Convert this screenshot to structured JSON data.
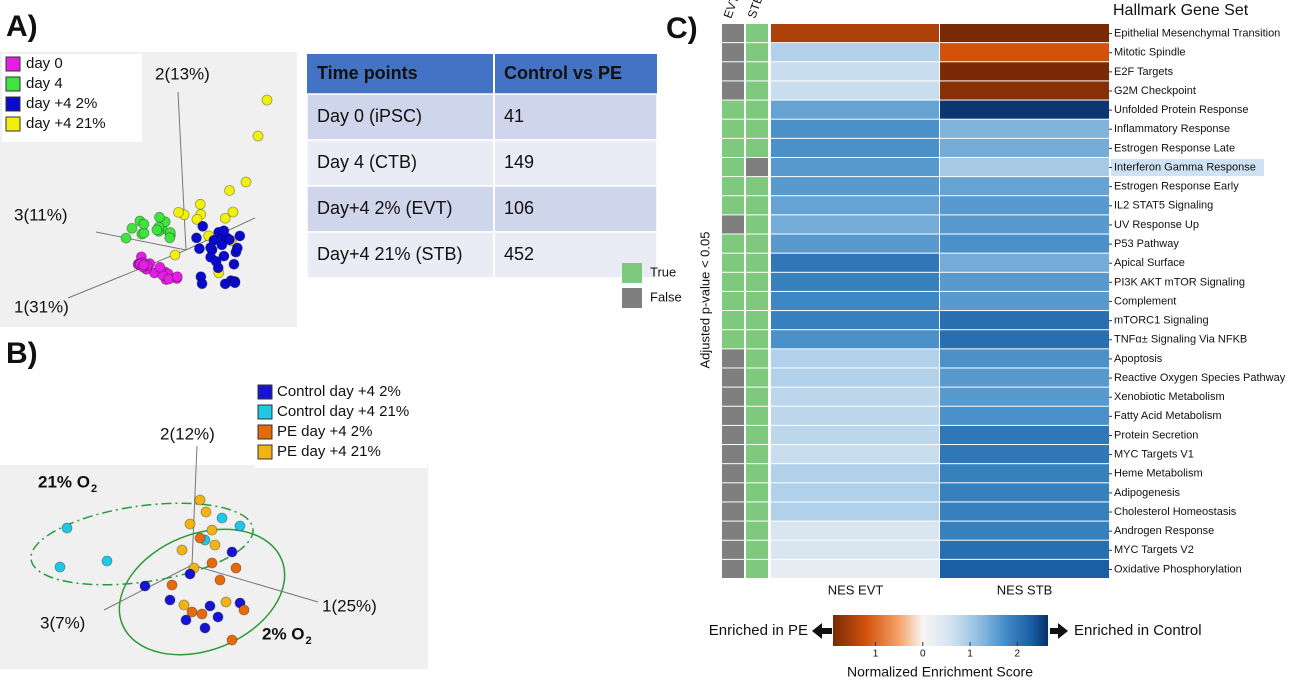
{
  "panel_a": {
    "label": "A)",
    "legend": [
      {
        "label": "day 0",
        "color": "#e41ee4"
      },
      {
        "label": "day 4",
        "color": "#3fe43f"
      },
      {
        "label": "day +4 2%",
        "color": "#0a0acf"
      },
      {
        "label": "day +4 21%",
        "color": "#f0f00a"
      }
    ],
    "axes": [
      "2(13%)",
      "3(11%)",
      "1(31%)"
    ]
  },
  "table": {
    "header": [
      "Time points",
      "Control vs PE"
    ],
    "rows": [
      [
        "Day 0 (iPSC)",
        41
      ],
      [
        "Day 4 (CTB)",
        149
      ],
      [
        "Day+4 2% (EVT)",
        106
      ],
      [
        "Day+4 21% (STB)",
        452
      ]
    ]
  },
  "panel_b": {
    "label": "B)",
    "legend": [
      {
        "label": "Control day +4 2%",
        "color": "#1414d2"
      },
      {
        "label": "Control day +4 21%",
        "color": "#1ec8e6"
      },
      {
        "label": "PE day +4 2%",
        "color": "#e66a0a"
      },
      {
        "label": "PE day +4 21%",
        "color": "#f0b414"
      }
    ],
    "axes": [
      "2(12%)",
      "3(7%)",
      "1(25%)"
    ],
    "regions": [
      {
        "text": "21% O",
        "subscript": "2"
      },
      {
        "text": "2% O",
        "subscript": "2"
      }
    ]
  },
  "panel_c": {
    "label": "C)",
    "column_headers": [
      "EVT",
      "STB"
    ],
    "gene_set_title": "Hallmark Gene Set",
    "significance_label": "Adjusted p-value < 0.05",
    "significance_legend": [
      {
        "label": "True",
        "color": "#7ec97e"
      },
      {
        "label": "False",
        "color": "#7f7f7f"
      }
    ],
    "x_labels": [
      "NES EVT",
      "NES STB"
    ],
    "rows": [
      {
        "name": "Epithelial Mesenchymal Transition",
        "color": "#e0501a",
        "evt": -1.5,
        "stb": -2.0,
        "evt_significant": false,
        "stb_significant": true
      },
      {
        "name": "Mitotic Spindle",
        "color": "#e0501a",
        "evt": 0.9,
        "stb": -1.2,
        "evt_significant": false,
        "stb_significant": true
      },
      {
        "name": "E2F Targets",
        "color": "#e0501a",
        "evt": 0.7,
        "stb": -1.9,
        "evt_significant": false,
        "stb_significant": true
      },
      {
        "name": "G2M Checkpoint",
        "color": "#e0501a",
        "evt": 0.7,
        "stb": -1.8,
        "evt_significant": false,
        "stb_significant": true
      },
      {
        "name": "Unfolded Protein Response",
        "color": "#111111",
        "evt": 1.5,
        "stb": 2.6,
        "evt_significant": true,
        "stb_significant": true
      },
      {
        "name": "Inflammatory Response",
        "color": "#111111",
        "evt": 1.7,
        "stb": 1.3,
        "evt_significant": true,
        "stb_significant": true
      },
      {
        "name": "Estrogen Response Late",
        "color": "#111111",
        "evt": 1.7,
        "stb": 1.4,
        "evt_significant": true,
        "stb_significant": true
      },
      {
        "name": "Interferon Gamma Response",
        "color": "#111111",
        "highlight": "#cfe2f3",
        "evt": 1.6,
        "stb": 1.0,
        "evt_significant": true,
        "stb_significant": false
      },
      {
        "name": "Estrogen Response Early",
        "color": "#111111",
        "evt": 1.6,
        "stb": 1.5,
        "evt_significant": true,
        "stb_significant": true
      },
      {
        "name": "IL2 STAT5 Signaling",
        "color": "#111111",
        "evt": 1.5,
        "stb": 1.6,
        "evt_significant": true,
        "stb_significant": true
      },
      {
        "name": "UV Response Up",
        "color": "#1f5fa8",
        "evt": 1.4,
        "stb": 1.6,
        "evt_significant": false,
        "stb_significant": true
      },
      {
        "name": "P53 Pathway",
        "color": "#111111",
        "evt": 1.6,
        "stb": 1.7,
        "evt_significant": true,
        "stb_significant": true
      },
      {
        "name": "Apical Surface",
        "color": "#111111",
        "evt": 2.0,
        "stb": 1.4,
        "evt_significant": true,
        "stb_significant": true
      },
      {
        "name": "PI3K AKT mTOR Signaling",
        "color": "#111111",
        "evt": 1.9,
        "stb": 1.6,
        "evt_significant": true,
        "stb_significant": true
      },
      {
        "name": "Complement",
        "color": "#111111",
        "evt": 1.8,
        "stb": 1.6,
        "evt_significant": true,
        "stb_significant": true
      },
      {
        "name": "mTORC1 Signaling",
        "color": "#111111",
        "evt": 1.9,
        "stb": 2.1,
        "evt_significant": true,
        "stb_significant": true
      },
      {
        "name": "TNFα± Signaling Via NFKB",
        "color": "#111111",
        "evt": 1.7,
        "stb": 2.1,
        "evt_significant": true,
        "stb_significant": true
      },
      {
        "name": "Apoptosis",
        "color": "#1f5fa8",
        "evt": 0.9,
        "stb": 1.7,
        "evt_significant": false,
        "stb_significant": true
      },
      {
        "name": "Reactive Oxygen Species Pathway",
        "color": "#1f5fa8",
        "evt": 0.9,
        "stb": 1.6,
        "evt_significant": false,
        "stb_significant": true
      },
      {
        "name": "Xenobiotic Metabolism",
        "color": "#1f5fa8",
        "evt": 0.8,
        "stb": 1.6,
        "evt_significant": false,
        "stb_significant": true
      },
      {
        "name": "Fatty Acid Metabolism",
        "color": "#1f5fa8",
        "evt": 0.8,
        "stb": 1.7,
        "evt_significant": false,
        "stb_significant": true
      },
      {
        "name": "Protein Secretion",
        "color": "#1f5fa8",
        "evt": 0.8,
        "stb": 2.0,
        "evt_significant": false,
        "stb_significant": true
      },
      {
        "name": "MYC Targets V1",
        "color": "#1f5fa8",
        "evt": 0.7,
        "stb": 2.0,
        "evt_significant": false,
        "stb_significant": true
      },
      {
        "name": "Heme Metabolism",
        "color": "#1f5fa8",
        "evt": 0.9,
        "stb": 1.9,
        "evt_significant": false,
        "stb_significant": true
      },
      {
        "name": "Adipogenesis",
        "color": "#1f5fa8",
        "evt": 0.9,
        "stb": 1.9,
        "evt_significant": false,
        "stb_significant": true
      },
      {
        "name": "Cholesterol Homeostasis",
        "color": "#1f5fa8",
        "evt": 0.9,
        "stb": 1.9,
        "evt_significant": false,
        "stb_significant": true
      },
      {
        "name": "Androgen Response",
        "color": "#1f5fa8",
        "evt": 0.5,
        "stb": 1.9,
        "evt_significant": false,
        "stb_significant": true
      },
      {
        "name": "MYC Targets V2",
        "color": "#1f5fa8",
        "evt": 0.5,
        "stb": 2.1,
        "evt_significant": false,
        "stb_significant": true
      },
      {
        "name": "Oxidative Phosphorylation",
        "color": "#1f5fa8",
        "evt": 0.3,
        "stb": 2.3,
        "evt_significant": false,
        "stb_significant": true
      }
    ],
    "colorbar": {
      "title": "Normalized Enrichment Score",
      "lim": [
        -1.9,
        2.65
      ],
      "ticks": [
        {
          "value": -1,
          "label": "1"
        },
        0,
        1,
        2
      ],
      "colormap": [
        {
          "value": -1.9,
          "color": "#7a2a05"
        },
        {
          "value": -1.2,
          "color": "#d2520c"
        },
        {
          "value": -0.5,
          "color": "#f6a36a"
        },
        {
          "value": 0,
          "color": "#f7f5f3"
        },
        {
          "value": 0.6,
          "color": "#d3e3f1"
        },
        {
          "value": 1.2,
          "color": "#8fbde0"
        },
        {
          "value": 1.8,
          "color": "#3d88c4"
        },
        {
          "value": 2.3,
          "color": "#1a5ea4"
        },
        {
          "value": 2.65,
          "color": "#0a2f66"
        }
      ],
      "left_label": "Enriched in PE",
      "right_label": "Enriched in Control"
    }
  }
}
